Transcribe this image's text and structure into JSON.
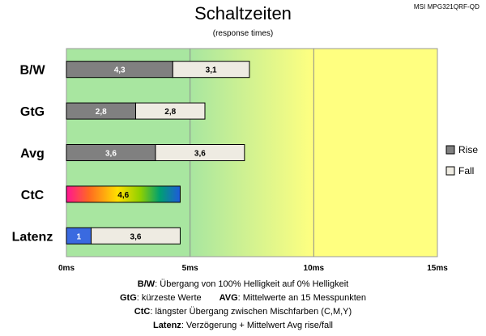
{
  "header": {
    "model": "MSI MPG321QRF-QD",
    "title": "Schaltzeiten",
    "subtitle": "(response times)"
  },
  "colors": {
    "rise": "#808080",
    "fall": "#eeebe2",
    "latency": "#3a6ae0",
    "zone_green_solid": "#a8e6a0",
    "zone_yellow": "#ffff80",
    "grid": "#8c8c8c"
  },
  "chart_data": {
    "type": "bar",
    "orientation": "horizontal",
    "stacked": true,
    "categories": [
      "B/W",
      "GtG",
      "Avg",
      "CtC",
      "Latenz"
    ],
    "series": [
      {
        "name": "Rise",
        "values": [
          4.3,
          2.8,
          3.6,
          4.6,
          1
        ]
      },
      {
        "name": "Fall",
        "values": [
          3.1,
          2.8,
          3.6,
          null,
          3.6
        ]
      }
    ],
    "xlim": [
      0,
      15
    ],
    "xticks": [
      "0ms",
      "5ms",
      "10ms",
      "15ms"
    ],
    "xtick_values": [
      0,
      5,
      10,
      15
    ],
    "legend_position": "right",
    "grid": true,
    "background_zones": "green 0-5ms, green-to-yellow gradient 5-10ms, yellow 10-15ms"
  },
  "notes": [
    {
      "key": "B/W",
      "text": ": Übergang von 100% Helligkeit auf 0% Helligkeit"
    },
    {
      "key": "GtG",
      "text": ": kürzeste Werte",
      "key2": "AVG",
      "text2": ": Mittelwerte an 15 Messpunkten"
    },
    {
      "key": "CtC",
      "text": ": längster Übergang zwischen Mischfarben (C,M,Y)"
    },
    {
      "key": "Latenz",
      "text": ": Verzögerung + Mittelwert Avg rise/fall"
    }
  ]
}
